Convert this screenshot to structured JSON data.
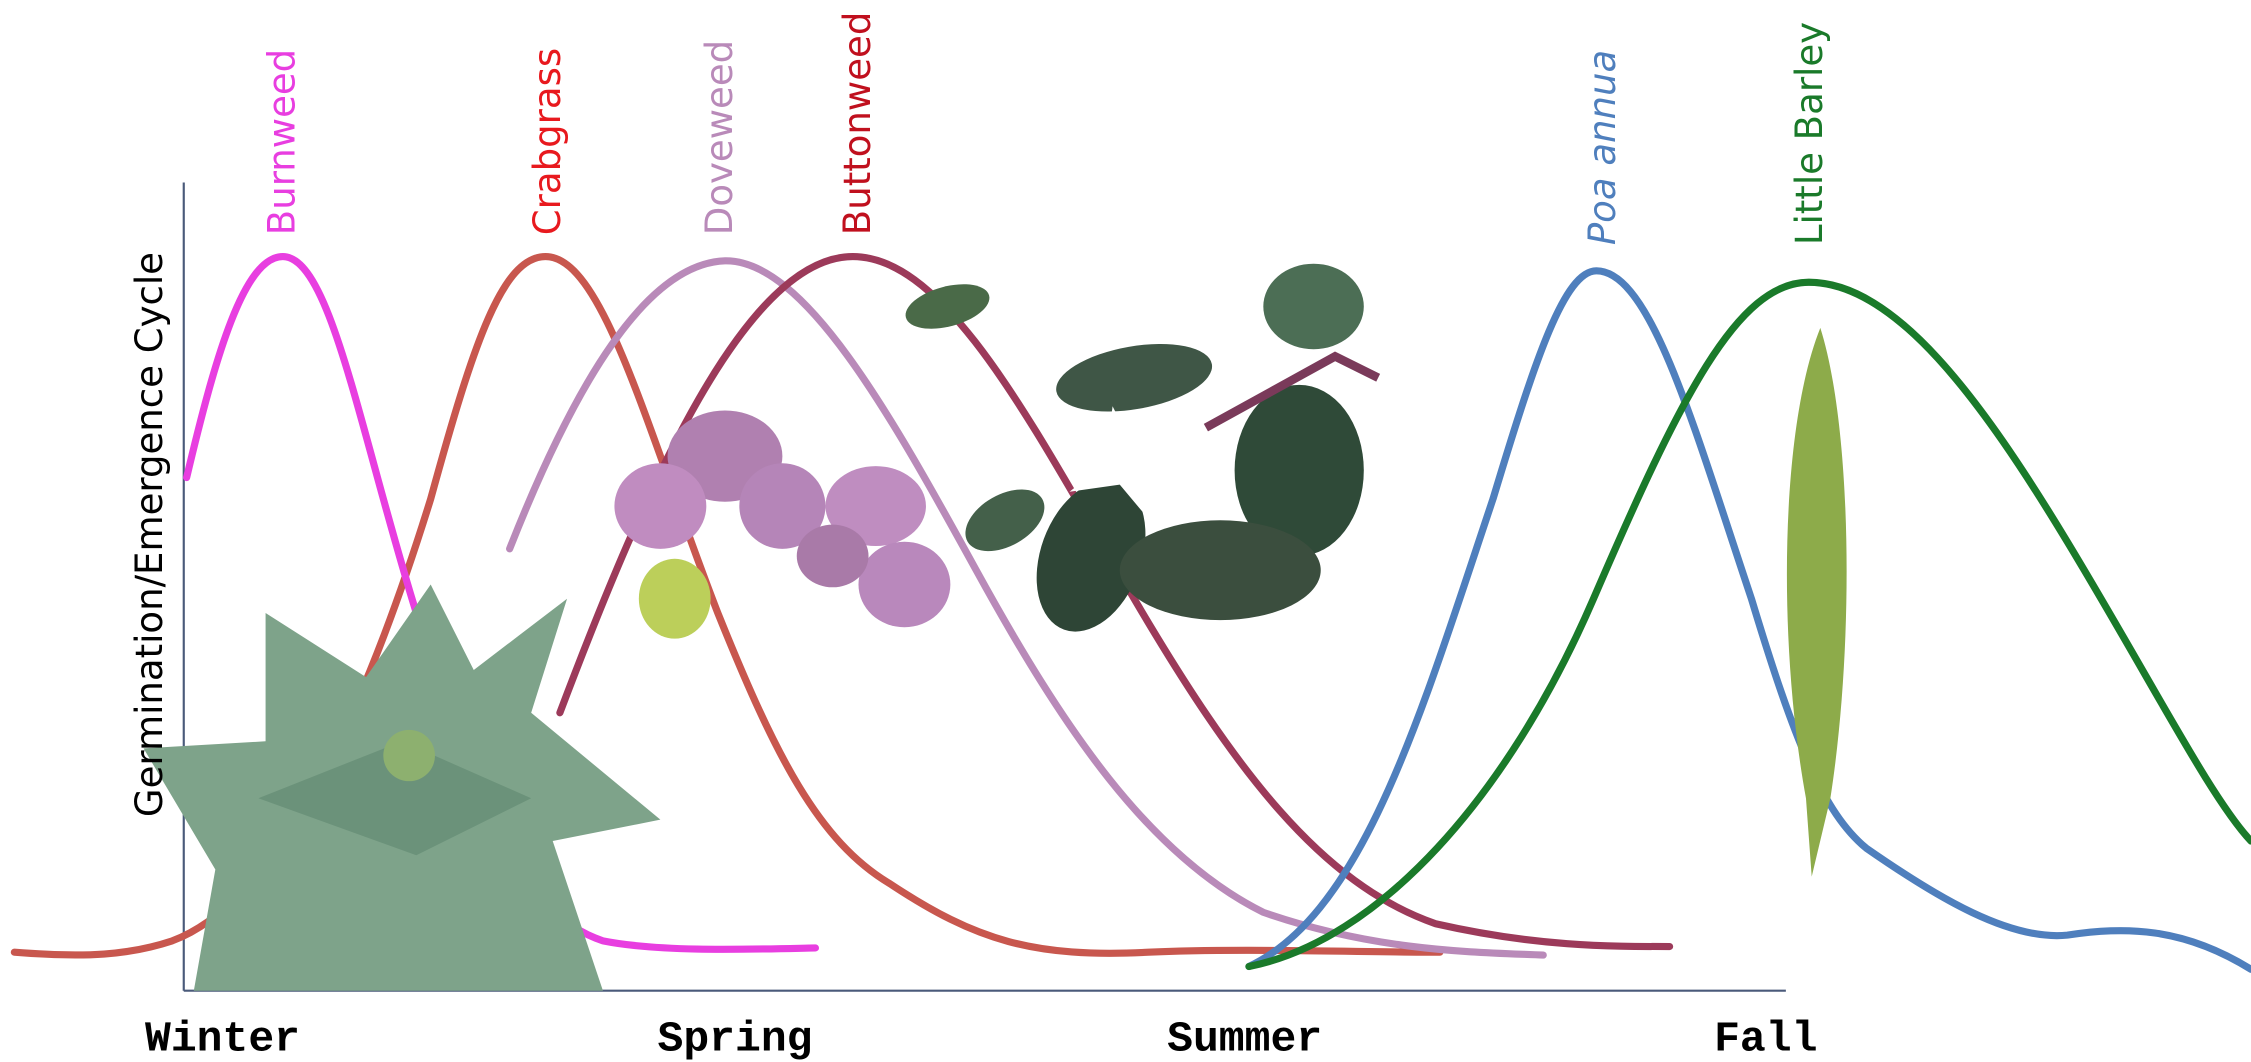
{
  "y_axis_label": "Germination/Emergence Cycle",
  "seasons": [
    "Winter",
    "Spring",
    "Summer",
    "Fall"
  ],
  "curve_labels": [
    "Burnweed",
    "Crabgrass",
    "Doveweed",
    "Buttonweed",
    "Poa annua",
    "Little Barley"
  ]
}
